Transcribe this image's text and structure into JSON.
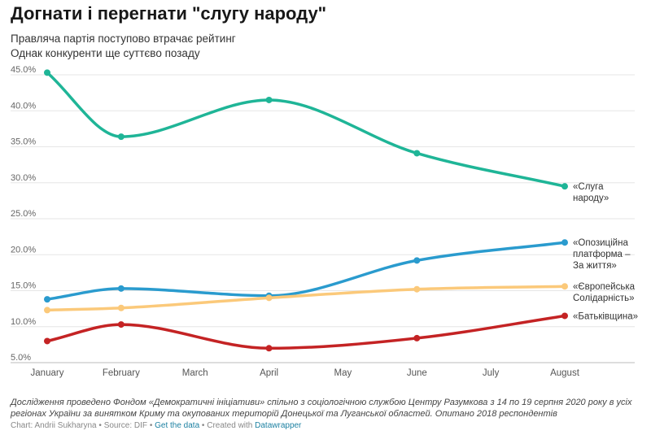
{
  "title": "Догнати і перегнати \"слугу народу\"",
  "subtitle_lines": [
    "Правляча партія поступово втрачає рейтинг",
    "Однак конкуренти ще суттєво позаду"
  ],
  "chart_data": {
    "type": "line",
    "categories": [
      "January",
      "February",
      "March",
      "April",
      "May",
      "June",
      "July",
      "August"
    ],
    "ylim": [
      5,
      45
    ],
    "yticks": [
      "5.0%",
      "10.0%",
      "15.0%",
      "20.0%",
      "25.0%",
      "30.0%",
      "35.0%",
      "40.0%",
      "45.0%"
    ],
    "grid": true,
    "series": [
      {
        "name": "«Слуга народу»",
        "label_lines": [
          "«Слуга",
          "народу»"
        ],
        "color": "#1fb597",
        "x": [
          "January",
          "February",
          "April",
          "June",
          "August"
        ],
        "values": [
          45.3,
          36.4,
          41.5,
          34.1,
          29.5
        ]
      },
      {
        "name": "«Опозиційна платформа – За життя»",
        "label_lines": [
          "«Опозиційна",
          "платформа –",
          "За життя»"
        ],
        "color": "#2a9bce",
        "x": [
          "January",
          "February",
          "April",
          "June",
          "August"
        ],
        "values": [
          13.8,
          15.3,
          14.3,
          19.2,
          21.7
        ]
      },
      {
        "name": "«Європейська Солідарність»",
        "label_lines": [
          "«Європейська",
          "Солідарність»"
        ],
        "color": "#fbc97a",
        "x": [
          "January",
          "February",
          "April",
          "June",
          "August"
        ],
        "values": [
          12.3,
          12.6,
          14.0,
          15.2,
          15.6
        ]
      },
      {
        "name": "«Батьківщина»",
        "label_lines": [
          "«Батьківщина»"
        ],
        "color": "#c42324",
        "x": [
          "January",
          "February",
          "April",
          "June",
          "August"
        ],
        "values": [
          8.0,
          10.3,
          7.0,
          8.4,
          11.5
        ]
      }
    ]
  },
  "notes": "Дослідження проведено Фондом «Демократичні ініціативи» спільно з соціологічною службою Центру Разумкова з 14 по 19 серпня 2020 року в усіх регіонах України за винятком Криму та окупованих територій Донецької та Луганської областей. Опитано 2018 респондентів",
  "footer": {
    "chart_by": "Chart: Andrii Sukharyna",
    "source": "Source: DIF",
    "get_data": "Get the data",
    "created_with": "Created with",
    "datawrapper": "Datawrapper",
    "sep": " • "
  }
}
